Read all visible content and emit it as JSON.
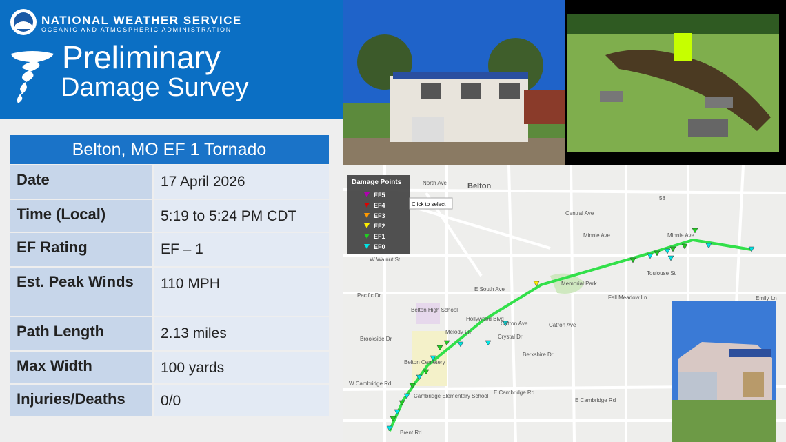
{
  "header": {
    "agency": "NATIONAL WEATHER SERVICE",
    "subagency": "OCEANIC AND ATMOSPHERIC ADMINISTRATION",
    "title_line1": "Preliminary",
    "title_line2": "Damage Survey"
  },
  "table": {
    "title": "Belton, MO EF 1 Tornado",
    "rows": [
      [
        "Date",
        "17 April 2026"
      ],
      [
        "Time (Local)",
        "5:19 to 5:24 PM CDT"
      ],
      [
        "EF Rating",
        "EF – 1"
      ],
      [
        "Est. Peak Winds",
        "110 MPH"
      ],
      [
        "Path Length",
        "2.13 miles"
      ],
      [
        "Max Width",
        "100 yards"
      ],
      [
        "Injuries/Deaths",
        "0/0"
      ]
    ]
  },
  "map": {
    "legend": {
      "title": "Damage Points",
      "items": [
        "EF5",
        "EF4",
        "EF3",
        "EF2",
        "EF1",
        "EF0"
      ]
    },
    "tooltip": "Click to select",
    "labels": [
      "Belton",
      "North Ave",
      "Central Ave",
      "Minnie Ave",
      "Minnie Ave",
      "Memorial Park",
      "E South Ave",
      "Toulouse St",
      "Fall Meadow Ln",
      "Belton High School",
      "Hollywood Blvd",
      "Catron Ave",
      "Catron Ave",
      "Crystal Dr",
      "Melody Ln",
      "Belton Cemetery",
      "Cambridge Elementary School",
      "W Cambridge Rd",
      "E Cambridge Rd",
      "E Cambridge Rd",
      "Brent Rd",
      "Pacific Dr",
      "Brookside Dr",
      "W Walnut St",
      "Berkshire Dr",
      "Emily Ln",
      "58"
    ]
  }
}
